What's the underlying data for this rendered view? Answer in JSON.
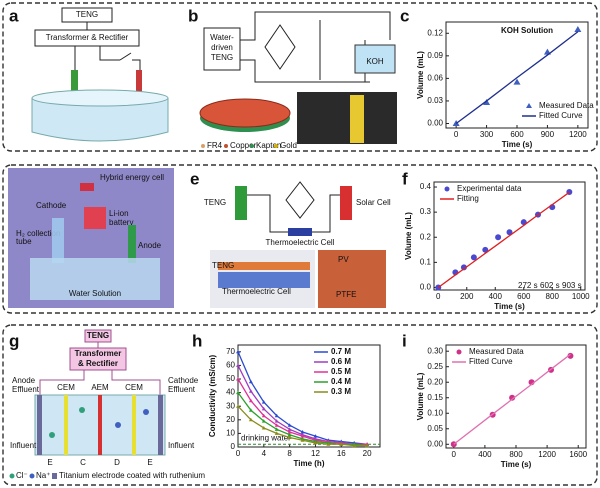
{
  "panel_letters": [
    "a",
    "b",
    "c",
    "d",
    "e",
    "f",
    "g",
    "h",
    "i"
  ],
  "diagram_a": {
    "teng": "TENG",
    "transformer": "Transformer & Rectifier"
  },
  "diagram_b": {
    "teng": [
      "Water-",
      "driven",
      "TENG"
    ],
    "koh": "KOH",
    "legend": [
      "FR4",
      "Copper",
      "Kapton",
      "Gold"
    ]
  },
  "diagram_d": {
    "hybrid": "Hybrid energy cell",
    "cathode": "Cathode",
    "battery": [
      "Li-ion",
      "battery"
    ],
    "anode": "Anode",
    "collection": [
      "H₂ collection",
      "tube"
    ],
    "solution": "Water Solution"
  },
  "diagram_e": {
    "teng": "TENG",
    "solar": "Solar Cell",
    "thermo": "Thermoelectric Cell",
    "photo_labels": [
      "TENG",
      "Thermoelectric Cell",
      "PV",
      "PTFE"
    ]
  },
  "diagram_g": {
    "teng": "TENG",
    "transformer": [
      "Transformer",
      "& Rectifier"
    ],
    "anode": [
      "Anode",
      "Effluent"
    ],
    "cathode": [
      "Cathode",
      "Effluent"
    ],
    "influent": [
      "Influent",
      "Influent"
    ],
    "membranes": [
      "CEM",
      "AEM",
      "CEM"
    ],
    "compartments": [
      "E",
      "C",
      "D",
      "E"
    ],
    "legend": [
      "Cl⁻",
      "Na⁺",
      "Titanium electrode coated with ruthenium"
    ]
  },
  "chart_data": [
    {
      "type": "scatter",
      "title": "KOH Solution",
      "xlabel": "Time (s)",
      "ylabel": "Volume (mL)",
      "x": [
        0,
        300,
        600,
        900,
        1200
      ],
      "xlim": [
        -100,
        1300
      ],
      "xticks": [
        0,
        300,
        600,
        900,
        1200
      ],
      "ylim": [
        -0.006,
        0.135
      ],
      "yticks": [
        {
          "value": 0,
          "label": "0.00"
        },
        0.03,
        0.06,
        0.09,
        0.12
      ],
      "legend": "lower right",
      "series": [
        {
          "name": "Measured Data",
          "color": "#3f5fbf",
          "mode": "markers",
          "marker": "triangle",
          "values": [
            0,
            0.028,
            0.055,
            0.095,
            0.125
          ]
        },
        {
          "name": "Fitted Curve",
          "color": "#1f2f8f",
          "mode": "lines",
          "values": [
            0,
            0.03,
            0.061,
            0.091,
            0.122
          ]
        }
      ]
    },
    {
      "type": "scatter",
      "xlabel": "Time (s)",
      "ylabel": "Volume (mL)",
      "x": [
        0,
        120,
        180,
        250,
        330,
        420,
        500,
        600,
        700,
        800,
        920
      ],
      "xlim": [
        -30,
        1030
      ],
      "xticks": [
        0,
        200,
        400,
        600,
        800,
        1000
      ],
      "ylim": [
        -0.01,
        0.42
      ],
      "yticks": [
        {
          "value": 0,
          "label": "0.0"
        },
        0.1,
        0.2,
        0.3,
        0.4
      ],
      "legend": "upper left",
      "annotations": [
        "272 s",
        "602 s",
        "903 s"
      ],
      "series": [
        {
          "name": "Experimental data",
          "color": "#4a4ad0",
          "mode": "markers",
          "marker": "circle",
          "values": [
            0,
            0.06,
            0.08,
            0.12,
            0.15,
            0.2,
            0.22,
            0.26,
            0.29,
            0.32,
            0.38
          ]
        },
        {
          "name": "Fitting",
          "color": "#e02020",
          "mode": "lines",
          "values": [
            0,
            0.05,
            0.074,
            0.103,
            0.136,
            0.173,
            0.206,
            0.247,
            0.289,
            0.33,
            0.379
          ]
        }
      ]
    },
    {
      "type": "line",
      "xlabel": "Time (h)",
      "ylabel": "Conductivity (mS/cm)",
      "x": [
        0,
        2,
        4,
        6,
        8,
        10,
        12,
        14,
        16,
        18,
        20
      ],
      "xlim": [
        0,
        22
      ],
      "xticks": [
        0,
        4,
        8,
        12,
        16,
        20
      ],
      "ylim": [
        0,
        75
      ],
      "yticks": [
        0,
        10,
        20,
        30,
        40,
        50,
        60,
        70
      ],
      "legend": "upper right",
      "reference": {
        "value": 2,
        "label": "drinking water"
      },
      "series": [
        {
          "name": "0.7 M",
          "color": "#2b4bd1",
          "mode": "lines",
          "values": [
            70,
            48,
            33,
            23,
            16,
            11,
            8,
            5,
            4,
            3,
            2
          ]
        },
        {
          "name": "0.6 M",
          "color": "#a03cc0",
          "mode": "lines",
          "values": [
            60,
            41,
            28,
            19,
            13,
            9,
            6,
            4,
            3,
            2,
            2
          ]
        },
        {
          "name": "0.5 M",
          "color": "#e0309a",
          "mode": "lines",
          "values": [
            50,
            34,
            23,
            16,
            11,
            8,
            5,
            4,
            3,
            2,
            2
          ]
        },
        {
          "name": "0.4 M",
          "color": "#2ca02c",
          "mode": "lines",
          "values": [
            40,
            27,
            19,
            13,
            9,
            6,
            4,
            3,
            2,
            2,
            1
          ]
        },
        {
          "name": "0.3 M",
          "color": "#8b8b1a",
          "mode": "lines",
          "values": [
            30,
            20,
            14,
            10,
            7,
            5,
            3,
            2,
            2,
            1,
            1
          ]
        }
      ]
    },
    {
      "type": "scatter",
      "xlabel": "Time (s)",
      "ylabel": "Volume (mL)",
      "x": [
        0,
        500,
        750,
        1000,
        1250,
        1500
      ],
      "xlim": [
        -100,
        1700
      ],
      "xticks": [
        0,
        400,
        800,
        1200,
        1600
      ],
      "ylim": [
        -0.012,
        0.32
      ],
      "yticks": [
        {
          "value": 0,
          "label": "0.00"
        },
        {
          "value": 0.05,
          "label": "0.05"
        },
        {
          "value": 0.1,
          "label": "0.10"
        },
        {
          "value": 0.15,
          "label": "0.15"
        },
        {
          "value": 0.2,
          "label": "0.20"
        },
        {
          "value": 0.25,
          "label": "0.25"
        },
        {
          "value": 0.3,
          "label": "0.30"
        }
      ],
      "legend": "upper left",
      "series": [
        {
          "name": "Measured Data",
          "color": "#d0308a",
          "mode": "markers",
          "marker": "circle",
          "values": [
            0,
            0.095,
            0.15,
            0.2,
            0.24,
            0.285
          ]
        },
        {
          "name": "Fitted Curve",
          "color": "#e070b0",
          "mode": "lines",
          "values": [
            0,
            0.097,
            0.145,
            0.193,
            0.242,
            0.29
          ]
        }
      ]
    }
  ]
}
